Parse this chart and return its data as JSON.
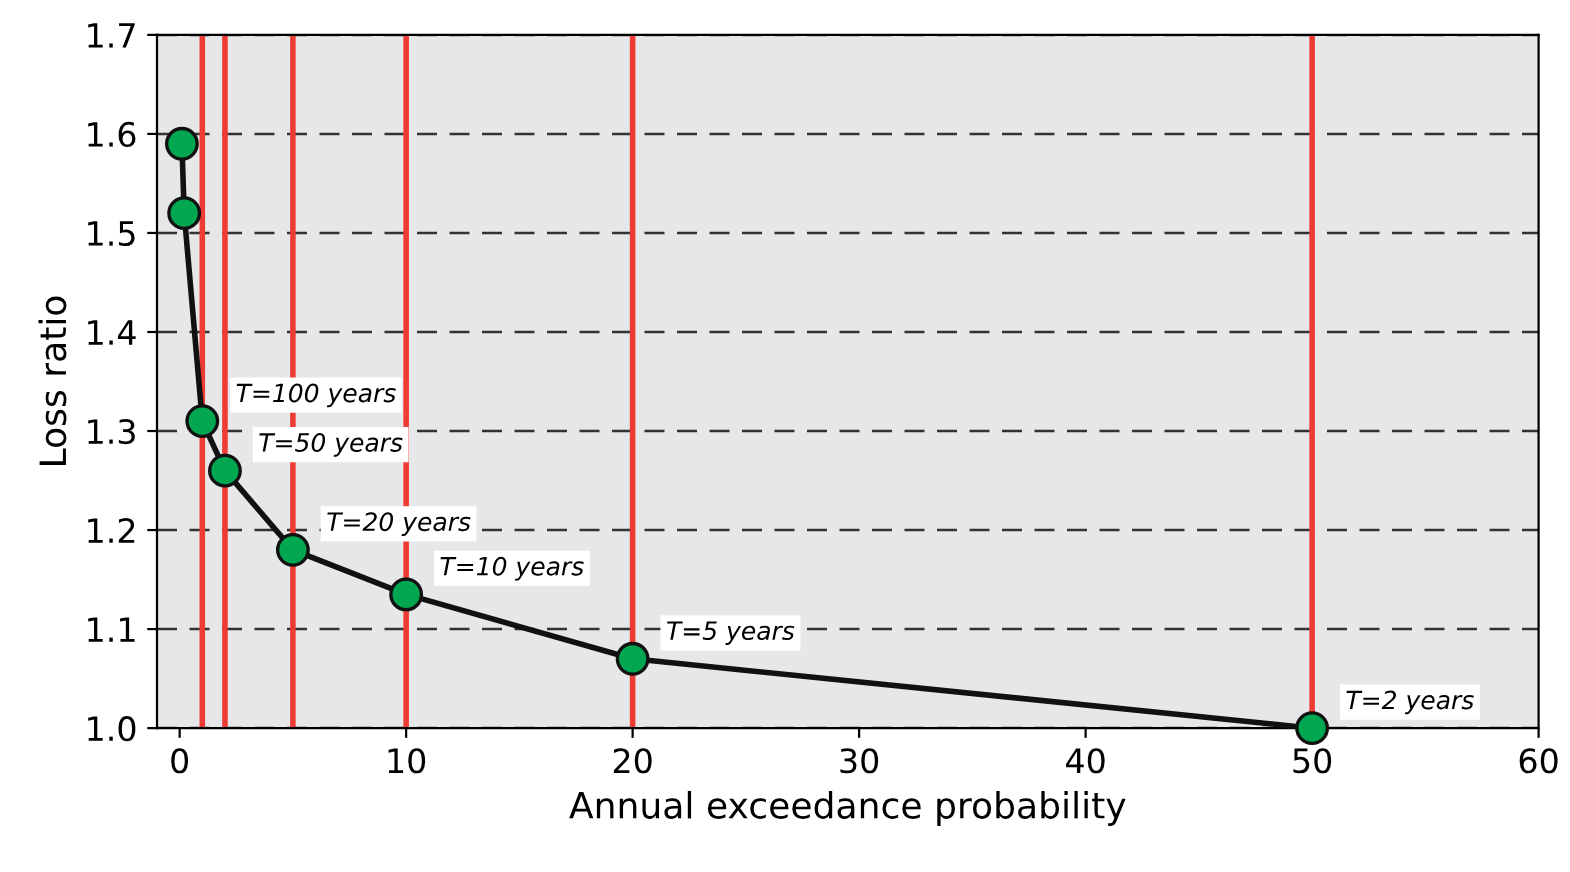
{
  "chart_data": {
    "type": "line",
    "xlabel": "Annual exceedance probability",
    "ylabel": "Loss ratio",
    "x": [
      0.1,
      0.2,
      1,
      2,
      5,
      10,
      20,
      50
    ],
    "series": [
      {
        "color": "#00a650",
        "values": [
          1.59,
          1.52,
          1.31,
          1.26,
          1.18,
          1.135,
          1.07,
          1.0
        ]
      }
    ],
    "marker": "circle",
    "line_style": "solid",
    "grid": "y",
    "xlim": [
      -1,
      60
    ],
    "xticks": [
      0,
      10,
      20,
      30,
      40,
      50,
      60
    ],
    "ylim": [
      1.0,
      1.7
    ],
    "yticks": [
      {
        "value": 1.0,
        "label": "1.0"
      },
      1.1,
      1.2,
      1.3,
      1.4,
      1.5,
      1.6,
      1.7
    ],
    "ref_lines": [
      {
        "axis": "x",
        "value": 1,
        "color": "#ee3b33"
      },
      {
        "axis": "x",
        "value": 2,
        "color": "#ee3b33"
      },
      {
        "axis": "x",
        "value": 5,
        "color": "#ee3b33"
      },
      {
        "axis": "x",
        "value": 10,
        "color": "#ee3b33"
      },
      {
        "axis": "x",
        "value": 20,
        "color": "#ee3b33"
      },
      {
        "axis": "x",
        "value": 50,
        "color": "#ee3b33"
      }
    ],
    "annotations": [
      {
        "text": "T=100 years",
        "x": 1,
        "y": 1.31
      },
      {
        "text": "T=50 years",
        "x": 2,
        "y": 1.26
      },
      {
        "text": "T=20 years",
        "x": 5,
        "y": 1.18
      },
      {
        "text": "T=10 years",
        "x": 10,
        "y": 1.135
      },
      {
        "text": "T=5 years",
        "x": 20,
        "y": 1.07
      },
      {
        "text": "T=2 years",
        "x": 50,
        "y": 1.0
      }
    ]
  }
}
